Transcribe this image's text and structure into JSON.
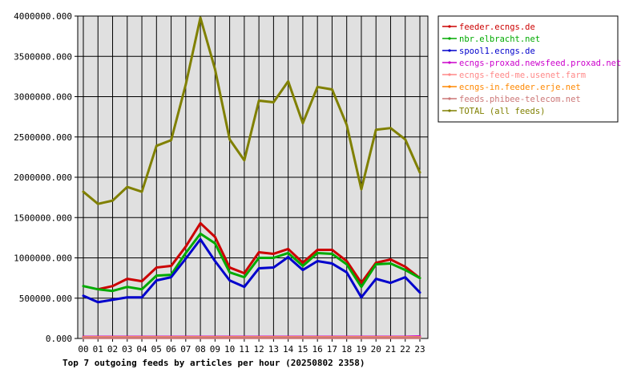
{
  "chart_data": {
    "type": "line",
    "title": "Top 7 outgoing feeds by articles per hour (20250802 2358)",
    "xlabel": "",
    "ylabel": "",
    "categories": [
      "00",
      "01",
      "02",
      "03",
      "04",
      "05",
      "06",
      "07",
      "08",
      "09",
      "10",
      "11",
      "12",
      "13",
      "14",
      "15",
      "16",
      "17",
      "18",
      "19",
      "20",
      "21",
      "22",
      "23"
    ],
    "ylim": [
      0,
      4000000
    ],
    "yticks": [
      "0.000",
      "500000.000",
      "1000000.000",
      "1500000.000",
      "2000000.000",
      "2500000.000",
      "3000000.000",
      "3500000.000",
      "4000000.000"
    ],
    "ytick_values": [
      0,
      500000,
      1000000,
      1500000,
      2000000,
      2500000,
      3000000,
      3500000,
      4000000
    ],
    "grid": true,
    "legend_position": "right",
    "series": [
      {
        "name": "feeder.ecngs.de",
        "color": "#cc0000",
        "values": [
          null,
          610000,
          650000,
          740000,
          710000,
          880000,
          900000,
          1140000,
          1430000,
          1260000,
          880000,
          810000,
          1070000,
          1050000,
          1110000,
          940000,
          1100000,
          1100000,
          960000,
          690000,
          940000,
          980000,
          890000,
          750000
        ]
      },
      {
        "name": "nbr.elbracht.net",
        "color": "#00aa00",
        "values": [
          650000,
          610000,
          590000,
          640000,
          610000,
          780000,
          790000,
          1060000,
          1300000,
          1180000,
          820000,
          760000,
          1000000,
          1000000,
          1060000,
          900000,
          1060000,
          1050000,
          920000,
          640000,
          920000,
          930000,
          850000,
          750000
        ]
      },
      {
        "name": "spool1.ecngs.de",
        "color": "#0000cc",
        "values": [
          530000,
          450000,
          480000,
          510000,
          510000,
          720000,
          760000,
          990000,
          1230000,
          960000,
          720000,
          640000,
          870000,
          880000,
          1010000,
          850000,
          960000,
          930000,
          820000,
          510000,
          740000,
          690000,
          760000,
          570000
        ]
      },
      {
        "name": "ecngs-proxad.newsfeed.proxad.net",
        "color": "#cc00cc",
        "values": [
          20000,
          20000,
          20000,
          20000,
          20000,
          20000,
          20000,
          20000,
          20000,
          20000,
          20000,
          20000,
          20000,
          20000,
          20000,
          20000,
          20000,
          20000,
          20000,
          20000,
          20000,
          20000,
          20000,
          25000
        ]
      },
      {
        "name": "ecngs-feed-me.usenet.farm",
        "color": "#ff8888",
        "values": [
          15000,
          15000,
          15000,
          15000,
          15000,
          15000,
          15000,
          15000,
          15000,
          15000,
          15000,
          15000,
          15000,
          15000,
          15000,
          15000,
          15000,
          15000,
          15000,
          15000,
          15000,
          15000,
          15000,
          15000
        ]
      },
      {
        "name": "ecngs-in.feeder.erje.net",
        "color": "#ff8800",
        "values": [
          10000,
          10000,
          10000,
          10000,
          10000,
          10000,
          10000,
          10000,
          10000,
          10000,
          10000,
          10000,
          10000,
          10000,
          10000,
          10000,
          10000,
          10000,
          10000,
          10000,
          10000,
          10000,
          10000,
          10000
        ]
      },
      {
        "name": "feeds.phibee-telecom.net",
        "color": "#cc7777",
        "values": [
          8000,
          8000,
          8000,
          8000,
          8000,
          8000,
          8000,
          8000,
          8000,
          8000,
          8000,
          8000,
          8000,
          8000,
          8000,
          8000,
          8000,
          8000,
          8000,
          8000,
          8000,
          8000,
          8000,
          8000
        ]
      },
      {
        "name": "TOTAL (all feeds)",
        "color": "#808000",
        "values": [
          1820000,
          1670000,
          1710000,
          1880000,
          1820000,
          2390000,
          2460000,
          3150000,
          3980000,
          3340000,
          2470000,
          2210000,
          2950000,
          2930000,
          3190000,
          2670000,
          3120000,
          3090000,
          2650000,
          1850000,
          2590000,
          2610000,
          2470000,
          2060000
        ]
      }
    ]
  }
}
